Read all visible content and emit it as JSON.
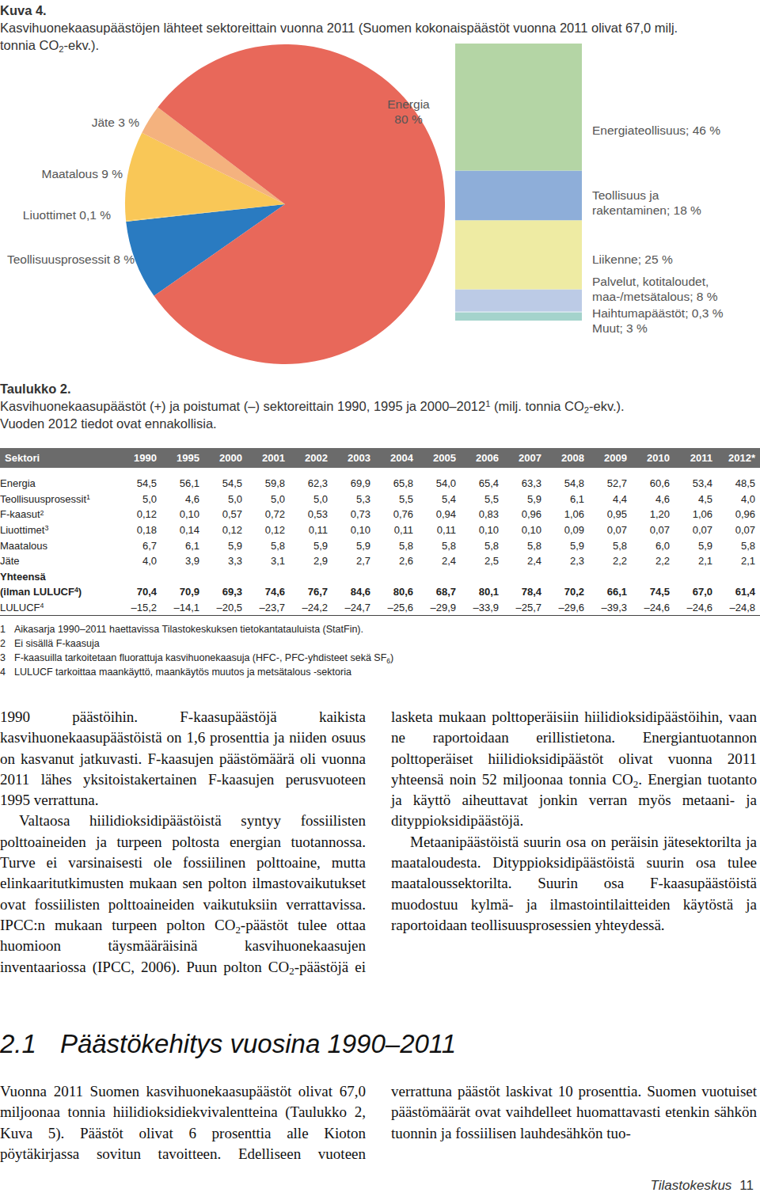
{
  "chart_data": [
    {
      "type": "pie",
      "categories": [
        "Teollisuusprosessit 8 %",
        "Liuottimet 0,1 %",
        "Maatalous 9 %",
        "Jäte 3 %",
        "Energia\n80 %"
      ],
      "values": [
        8,
        0.1,
        9,
        3,
        80
      ],
      "colors": [
        "#2a7bc1",
        "#f6cf6a",
        "#f9c757",
        "#f4b27e",
        "#e8685a"
      ]
    },
    {
      "type": "bar",
      "stacked": true,
      "tick_labels": false,
      "categories": [
        null
      ],
      "series": [
        {
          "name": "Muut; 3 %",
          "color": "#a4d3cc",
          "values": [
            3
          ]
        },
        {
          "name": "Haihtumapäästöt; 0,3 %",
          "color": "#d4e3ef",
          "values": [
            0.3
          ]
        },
        {
          "name": "Palvelut, kotitaloudet,\nmaa-/metsätalous; 8 %",
          "color": "#bccbe6",
          "values": [
            8
          ]
        },
        {
          "name": "Liikenne; 25 %",
          "color": "#eeeba3",
          "values": [
            25
          ]
        },
        {
          "name": "Teollisuus ja\nrakentaminen; 18 %",
          "color": "#8eaed9",
          "values": [
            18
          ]
        },
        {
          "name": "Energiateollisuus; 46 %",
          "color": "#b4d5a5",
          "values": [
            46
          ]
        }
      ]
    }
  ],
  "figure": {
    "label": "Kuva 4.",
    "caption": [
      [
        "Kasvihuonekaasupäästöjen lähteet sektoreittain vuonna 2011 (Suomen kokonaispäästöt vuonna 2011 olivat 67,0 milj."
      ],
      [
        "tonnia CO",
        {
          "sub": "2"
        },
        "-ekv.)."
      ]
    ]
  },
  "table": {
    "label": "Taulukko 2.",
    "caption": [
      [
        "Kasvihuonekaasupäästöt (+) ja poistumat (–) sektoreittain 1990, 1995 ja 2000–2012",
        {
          "sup": "1"
        },
        " (milj. tonnia CO",
        {
          "sub": "2"
        },
        "-ekv.)."
      ],
      [
        "Vuoden 2012 tiedot ovat ennakollisia."
      ]
    ],
    "header": [
      "Sektori",
      "1990",
      "1995",
      "2000",
      "2001",
      "2002",
      "2003",
      "2004",
      "2005",
      "2006",
      "2007",
      "2008",
      "2009",
      "2010",
      "2011",
      "2012*"
    ],
    "rows": [
      {
        "label": [
          "Energia"
        ],
        "values": [
          "54,5",
          "56,1",
          "54,5",
          "59,8",
          "62,3",
          "69,9",
          "65,8",
          "54,0",
          "65,4",
          "63,3",
          "54,8",
          "52,7",
          "60,6",
          "53,4",
          "48,5"
        ]
      },
      {
        "label": [
          "Teollisuusprosessit",
          {
            "sup": "1"
          }
        ],
        "values": [
          "5,0",
          "4,6",
          "5,0",
          "5,0",
          "5,0",
          "5,3",
          "5,5",
          "5,4",
          "5,5",
          "5,9",
          "6,1",
          "4,4",
          "4,6",
          "4,5",
          "4,0"
        ]
      },
      {
        "label": [
          "F-kaasut",
          {
            "sup": "2"
          }
        ],
        "values": [
          "0,12",
          "0,10",
          "0,57",
          "0,72",
          "0,53",
          "0,73",
          "0,76",
          "0,94",
          "0,83",
          "0,96",
          "1,06",
          "0,95",
          "1,20",
          "1,06",
          "0,96"
        ]
      },
      {
        "label": [
          "Liuottimet",
          {
            "sup": "3"
          }
        ],
        "values": [
          "0,18",
          "0,14",
          "0,12",
          "0,12",
          "0,11",
          "0,10",
          "0,11",
          "0,11",
          "0,10",
          "0,10",
          "0,09",
          "0,07",
          "0,07",
          "0,07",
          "0,07"
        ]
      },
      {
        "label": [
          "Maatalous"
        ],
        "values": [
          "6,7",
          "6,1",
          "5,9",
          "5,8",
          "5,9",
          "5,9",
          "5,8",
          "5,8",
          "5,8",
          "5,8",
          "5,9",
          "5,8",
          "6,0",
          "5,9",
          "5,8"
        ]
      },
      {
        "label": [
          "Jäte"
        ],
        "values": [
          "4,0",
          "3,9",
          "3,3",
          "3,1",
          "2,9",
          "2,7",
          "2,6",
          "2,4",
          "2,5",
          "2,4",
          "2,3",
          "2,2",
          "2,2",
          "2,1",
          "2,1"
        ]
      },
      {
        "label": [
          "Yhteensä"
        ],
        "values": [],
        "bold": true
      },
      {
        "label": [
          "(ilman LULUCF",
          {
            "sup": "4"
          },
          ")"
        ],
        "values": [
          "70,4",
          "70,9",
          "69,3",
          "74,6",
          "76,7",
          "84,6",
          "80,6",
          "68,7",
          "80,1",
          "78,4",
          "70,2",
          "66,1",
          "74,5",
          "67,0",
          "61,4"
        ],
        "bold": true
      },
      {
        "label": [
          "LULUCF",
          {
            "sup": "4"
          }
        ],
        "values": [
          "–15,2",
          "–14,1",
          "–20,5",
          "–23,7",
          "–24,2",
          "–24,7",
          "–25,6",
          "–29,9",
          "–33,9",
          "–25,7",
          "–29,6",
          "–39,3",
          "–24,6",
          "–24,6",
          "–24,8"
        ]
      }
    ],
    "notes": [
      {
        "num": "1",
        "text": [
          "Aikasarja 1990–2011 haettavissa Tilastokeskuksen tietokantatauluista (StatFin)."
        ]
      },
      {
        "num": "2",
        "text": [
          "Ei sisällä F-kaasuja"
        ]
      },
      {
        "num": "3",
        "text": [
          "F-kaasuilla tarkoitetaan fluorattuja kasvihuonekaasuja (HFC-, PFC-yhdisteet sekä SF",
          {
            "sub": "6"
          },
          ")"
        ]
      },
      {
        "num": "4",
        "text": [
          "LULUCF tarkoittaa maankäyttö, maankäytös muutos ja metsätalous -sektoria"
        ]
      }
    ]
  },
  "text": {
    "paragraphs": [
      [
        "1990 päästöihin. F-kaasupäästöjä kaikista kasvihuonekaasupäästöistä on 1,6 prosenttia ja niiden osuus on kasvanut jatkuvasti. F-kaasujen päästömäärä oli vuonna 2011 lähes yksitoistakertainen F-kaasujen perusvuoteen 1995 verrattuna."
      ],
      [
        "Valtaosa hiilidioksidipäästöistä syntyy fossiilisten polttoaineiden ja turpeen poltosta energian tuotannossa. Turve ei varsinaisesti ole fossiilinen polttoaine, mutta elinkaaritutkimusten mukaan sen polton ilmastovaikutukset ovat fossiilisten polttoaineiden vaikutuksiin verrattavissa. IPCC:n mukaan turpeen polton CO",
        {
          "sub": "2"
        },
        "-päästöt tulee ottaa huomioon täysmääräisinä kasvihuonekaasujen inventaariossa (IPCC, 2006). Puun polton CO",
        {
          "sub": "2"
        },
        "-päästöjä ei lasketa mukaan polttoperäisiin hiilidioksidipäästöihin, vaan ne raportoidaan erillistietona. Energiantuotannon polttoperäiset hiilidioksidipäästöt olivat vuonna 2011 yhteensä noin 52 miljoonaa tonnia CO",
        {
          "sub": "2"
        },
        ". Energian tuotanto ja käyttö aiheuttavat jonkin verran myös metaani- ja dityppioksidipäästöjä."
      ],
      [
        "Metaanipäästöistä suurin osa on peräisin jätesektorilta ja maataloudesta. Dityppioksidipäästöistä suurin osa tulee maataloussektorilta. Suurin osa F-kaasupäästöistä muodostuu kylmä- ja ilmastointilaitteiden käytöstä ja raportoidaan teollisuusprosessien yhteydessä."
      ]
    ],
    "section": {
      "number": "2.1",
      "title": "Päästökehitys vuosina 1990–2011"
    },
    "section_paragraphs": [
      [
        "Vuonna 2011 Suomen kasvihuonekaasupäästöt olivat 67,0 miljoonaa tonnia hiilidioksidiekvivalentteina (Taulukko 2, Kuva 5). Päästöt olivat 6 prosenttia alle Kioton pöytäkirjassa sovitun tavoitteen. Edelliseen vuoteen verrattuna päästöt laskivat 10 prosenttia. Suomen vuotuiset päästömäärät ovat vaihdelleet huomattavasti etenkin sähkön tuonnin ja fossiilisen lauhdesähkön tuo-"
      ]
    ]
  },
  "footer": {
    "text": "Tilastokeskus",
    "page": "11"
  }
}
